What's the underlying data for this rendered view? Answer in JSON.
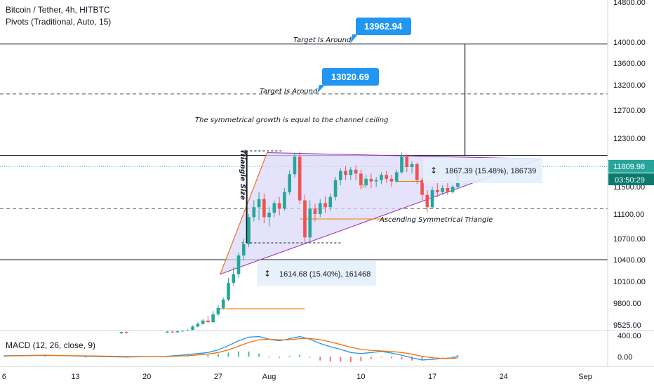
{
  "header": {
    "symbol_line": "Bitcoin / Tether, 4h, HITBTC",
    "pivots_line": "Pivots (Traditional, Auto, 15)"
  },
  "macd_label": "MACD (12, 26, close, 9)",
  "annotations": {
    "target_upper": "Target Is Around",
    "target_lower": "Target Is Around",
    "growth_note": "The symmetrical growth is equal to the channel ceiling",
    "triangle_size": "Triangle Size",
    "pattern_name": "Ascending Symmetrical Triangle",
    "pivot_marker": "P"
  },
  "callouts": {
    "upper": "13962.94",
    "lower": "13020.69"
  },
  "measures": {
    "right": "1867.39 (15.48%), 186739",
    "left": "1614.68 (15.40%), 161468"
  },
  "price_tags": {
    "last_price": "11809.98",
    "countdown": "03:50:29"
  },
  "colors": {
    "callout_blue": "#2196f3",
    "last_price_green": "#26a69a",
    "countdown_teal": "#0a7a6f",
    "triangle_fill": "#d8d7fa",
    "triangle_edge": "#9c27b0",
    "orange": "#f57c00",
    "up_candle": "#26a69a",
    "down_candle": "#ef5350",
    "macd_line": "#2196f3",
    "signal_line": "#ff6d00"
  },
  "chart_data": {
    "type": "candlestick",
    "title": "Bitcoin / Tether, 4h, HITBTC",
    "price_axis": {
      "range": [
        9400,
        14850
      ],
      "tick_labels": [
        "14800.00",
        "14000.00",
        "13600.00",
        "13200.00",
        "12700.00",
        "12300.00",
        "11800.00",
        "11500.00",
        "11100.00",
        "10700.00",
        "10400.00",
        "10100.00",
        "9800.00",
        "9525.00"
      ],
      "ticks": [
        14800,
        14000,
        13600,
        13200,
        12700,
        12300,
        11800,
        11500,
        11100,
        10700,
        10400,
        10100,
        9800,
        9525
      ]
    },
    "time_axis": {
      "tick_labels": [
        "6",
        "13",
        "20",
        "27",
        "Aug",
        "10",
        "17",
        "24",
        "Sep"
      ],
      "tick_days": [
        0,
        7,
        14,
        21,
        26,
        35,
        42,
        49,
        57
      ],
      "range_days": [
        -0.4,
        59.2
      ]
    },
    "macd_axis": {
      "tick_labels": [
        "400.00",
        "0.00"
      ],
      "ticks": [
        400,
        0
      ],
      "range": [
        -180,
        480
      ]
    },
    "horizontal_levels": [
      {
        "price": 13962.94,
        "style": "solid"
      },
      {
        "price": 13020.69,
        "style": "dashed"
      },
      {
        "price": 12000,
        "style": "solid"
      },
      {
        "price": 11180,
        "style": "dashed"
      },
      {
        "price": 10400,
        "style": "solid"
      }
    ],
    "last_price": 11809.98,
    "candles": [
      {
        "t": 11.5,
        "o": 9420,
        "h": 9440,
        "c": 9435,
        "l": 9410
      },
      {
        "t": 12.0,
        "o": 9435,
        "h": 9445,
        "c": 9428,
        "l": 9415
      },
      {
        "t": 16.0,
        "o": 9430,
        "h": 9448,
        "c": 9440,
        "l": 9420
      },
      {
        "t": 16.5,
        "o": 9440,
        "h": 9452,
        "c": 9432,
        "l": 9425
      },
      {
        "t": 17.0,
        "o": 9432,
        "h": 9450,
        "c": 9445,
        "l": 9428
      },
      {
        "t": 17.5,
        "o": 9445,
        "h": 9460,
        "c": 9452,
        "l": 9438
      },
      {
        "t": 18.0,
        "o": 9452,
        "h": 9470,
        "c": 9462,
        "l": 9445
      },
      {
        "t": 18.5,
        "o": 9462,
        "h": 9520,
        "c": 9505,
        "l": 9455
      },
      {
        "t": 19.0,
        "o": 9505,
        "h": 9560,
        "c": 9540,
        "l": 9495
      },
      {
        "t": 19.5,
        "o": 9540,
        "h": 9600,
        "c": 9580,
        "l": 9525
      },
      {
        "t": 20.0,
        "o": 9580,
        "h": 9640,
        "c": 9560,
        "l": 9545
      },
      {
        "t": 20.5,
        "o": 9560,
        "h": 9700,
        "c": 9660,
        "l": 9550
      },
      {
        "t": 21.0,
        "o": 9660,
        "h": 9780,
        "c": 9740,
        "l": 9640
      },
      {
        "t": 21.5,
        "o": 9740,
        "h": 9880,
        "c": 9850,
        "l": 9720
      },
      {
        "t": 22.0,
        "o": 9850,
        "h": 10150,
        "c": 10080,
        "l": 9830
      },
      {
        "t": 22.5,
        "o": 10080,
        "h": 10300,
        "c": 10200,
        "l": 10040
      },
      {
        "t": 23.0,
        "o": 10200,
        "h": 10500,
        "c": 10460,
        "l": 10150
      },
      {
        "t": 23.5,
        "o": 10460,
        "h": 10700,
        "c": 10620,
        "l": 10400
      },
      {
        "t": 24.0,
        "o": 10620,
        "h": 11100,
        "c": 11050,
        "l": 10580
      },
      {
        "t": 24.5,
        "o": 11050,
        "h": 11300,
        "c": 11200,
        "l": 10980
      },
      {
        "t": 25.0,
        "o": 11200,
        "h": 11420,
        "c": 11320,
        "l": 11000
      },
      {
        "t": 25.5,
        "o": 11320,
        "h": 11400,
        "c": 11050,
        "l": 10950
      },
      {
        "t": 26.0,
        "o": 11050,
        "h": 11200,
        "c": 11120,
        "l": 10900
      },
      {
        "t": 26.5,
        "o": 11120,
        "h": 11300,
        "c": 11260,
        "l": 11050
      },
      {
        "t": 27.0,
        "o": 11260,
        "h": 11350,
        "c": 11180,
        "l": 11080
      },
      {
        "t": 27.5,
        "o": 11180,
        "h": 11480,
        "c": 11420,
        "l": 11150
      },
      {
        "t": 28.0,
        "o": 11420,
        "h": 11750,
        "c": 11690,
        "l": 11380
      },
      {
        "t": 28.5,
        "o": 11690,
        "h": 12050,
        "c": 11980,
        "l": 11640
      },
      {
        "t": 29.0,
        "o": 11980,
        "h": 12060,
        "c": 11300,
        "l": 11250
      },
      {
        "t": 29.5,
        "o": 11300,
        "h": 11380,
        "c": 10720,
        "l": 10650
      },
      {
        "t": 30.0,
        "o": 10720,
        "h": 11300,
        "c": 11180,
        "l": 10650
      },
      {
        "t": 30.5,
        "o": 11180,
        "h": 11250,
        "c": 11100,
        "l": 10980
      },
      {
        "t": 31.0,
        "o": 11100,
        "h": 11320,
        "c": 11260,
        "l": 11050
      },
      {
        "t": 31.5,
        "o": 11260,
        "h": 11360,
        "c": 11200,
        "l": 11120
      },
      {
        "t": 32.0,
        "o": 11200,
        "h": 11400,
        "c": 11350,
        "l": 11150
      },
      {
        "t": 32.5,
        "o": 11350,
        "h": 11650,
        "c": 11600,
        "l": 11300
      },
      {
        "t": 33.0,
        "o": 11600,
        "h": 11780,
        "c": 11740,
        "l": 11520
      },
      {
        "t": 33.5,
        "o": 11740,
        "h": 11820,
        "c": 11680,
        "l": 11600
      },
      {
        "t": 34.0,
        "o": 11680,
        "h": 11800,
        "c": 11760,
        "l": 11600
      },
      {
        "t": 34.5,
        "o": 11760,
        "h": 11830,
        "c": 11700,
        "l": 11600
      },
      {
        "t": 35.0,
        "o": 11700,
        "h": 11760,
        "c": 11520,
        "l": 11460
      },
      {
        "t": 35.5,
        "o": 11520,
        "h": 11680,
        "c": 11620,
        "l": 11480
      },
      {
        "t": 36.0,
        "o": 11620,
        "h": 11700,
        "c": 11580,
        "l": 11480
      },
      {
        "t": 36.5,
        "o": 11580,
        "h": 11650,
        "c": 11600,
        "l": 11500
      },
      {
        "t": 37.0,
        "o": 11600,
        "h": 11720,
        "c": 11680,
        "l": 11540
      },
      {
        "t": 37.5,
        "o": 11680,
        "h": 11740,
        "c": 11620,
        "l": 11560
      },
      {
        "t": 38.0,
        "o": 11620,
        "h": 11680,
        "c": 11580,
        "l": 11500
      },
      {
        "t": 38.5,
        "o": 11580,
        "h": 11760,
        "c": 11720,
        "l": 11560
      },
      {
        "t": 39.0,
        "o": 11720,
        "h": 12050,
        "c": 11980,
        "l": 11700
      },
      {
        "t": 39.5,
        "o": 11980,
        "h": 12020,
        "c": 11800,
        "l": 11720
      },
      {
        "t": 40.0,
        "o": 11800,
        "h": 11900,
        "c": 11850,
        "l": 11700
      },
      {
        "t": 40.5,
        "o": 11850,
        "h": 11880,
        "c": 11600,
        "l": 11540
      },
      {
        "t": 41.0,
        "o": 11600,
        "h": 11640,
        "c": 11380,
        "l": 11300
      },
      {
        "t": 41.5,
        "o": 11380,
        "h": 11450,
        "c": 11200,
        "l": 11120
      },
      {
        "t": 42.0,
        "o": 11200,
        "h": 11500,
        "c": 11450,
        "l": 11180
      },
      {
        "t": 42.5,
        "o": 11450,
        "h": 11560,
        "c": 11420,
        "l": 11350
      },
      {
        "t": 43.0,
        "o": 11420,
        "h": 11520,
        "c": 11480,
        "l": 11380
      },
      {
        "t": 43.5,
        "o": 11480,
        "h": 11560,
        "c": 11420,
        "l": 11380
      },
      {
        "t": 44.0,
        "o": 11420,
        "h": 11520,
        "c": 11500,
        "l": 11400
      },
      {
        "t": 44.5,
        "o": 11500,
        "h": 11820,
        "c": 11800,
        "l": 11480
      }
    ],
    "macd": {
      "t": [
        0,
        4,
        8,
        12,
        16,
        18,
        20,
        21,
        22,
        23,
        24,
        25,
        26,
        27,
        28,
        29,
        30,
        31,
        32,
        33,
        34,
        35,
        36,
        37,
        38,
        39,
        40,
        41,
        42,
        43,
        44,
        44.5
      ],
      "macd": [
        20,
        30,
        10,
        -5,
        10,
        40,
        80,
        130,
        210,
        300,
        370,
        380,
        330,
        300,
        340,
        380,
        330,
        250,
        190,
        140,
        80,
        60,
        80,
        100,
        70,
        30,
        -20,
        -60,
        -50,
        -30,
        -20,
        10
      ],
      "signal": [
        15,
        25,
        18,
        5,
        5,
        20,
        50,
        80,
        130,
        200,
        270,
        320,
        330,
        320,
        320,
        340,
        345,
        320,
        280,
        230,
        180,
        140,
        120,
        110,
        100,
        80,
        50,
        10,
        -20,
        -30,
        -30,
        -20
      ]
    }
  }
}
